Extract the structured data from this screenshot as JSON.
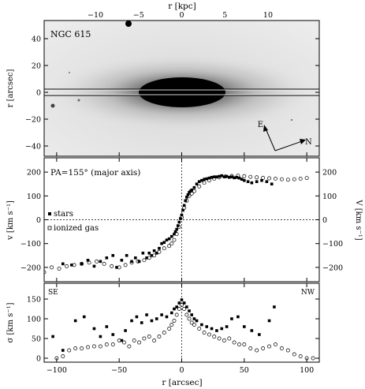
{
  "figure": {
    "top_axis_label": "r [kpc]",
    "bottom_axis_label": "r [arcsec]",
    "top_ticks": [
      "−10",
      "−5",
      "0",
      "5",
      "10"
    ],
    "bottom_ticks": [
      "−100",
      "−50",
      "0",
      "50",
      "100"
    ]
  },
  "image_panel": {
    "galaxy_name": "NGC 615",
    "ylabel": "r [arcsec]",
    "yticks": [
      "40",
      "20",
      "0",
      "−20",
      "−40"
    ],
    "compass_east": "E",
    "compass_north": "N"
  },
  "chart_data": [
    {
      "type": "scatter",
      "panel": "velocity",
      "annotation": "PA=155° (major axis)",
      "ylabel_left": "v [km s⁻¹]",
      "ylabel_right": "V [km s⁻¹]",
      "left_ticks": [
        "200",
        "100",
        "0",
        "−100",
        "−200"
      ],
      "right_ticks": [
        "200",
        "100",
        "0",
        "−100",
        "−200"
      ],
      "ylim": [
        -260,
        260
      ],
      "xlim": [
        -110,
        110
      ],
      "legend": [
        "stars",
        "ionized gas"
      ],
      "series": [
        {
          "name": "stars",
          "marker": "filled",
          "x": [
            -95,
            -88,
            -80,
            -75,
            -70,
            -65,
            -60,
            -55,
            -52,
            -48,
            -44,
            -40,
            -37,
            -34,
            -31,
            -28,
            -26,
            -24,
            -22,
            -20,
            -18,
            -16,
            -14,
            -12,
            -10,
            -8,
            -6,
            -5,
            -4,
            -3,
            -2,
            -1,
            0,
            1,
            2,
            3,
            4,
            5,
            6,
            7,
            8,
            10,
            12,
            14,
            16,
            18,
            20,
            22,
            24,
            26,
            28,
            30,
            32,
            34,
            36,
            38,
            40,
            42,
            44,
            46,
            48,
            50,
            53,
            56,
            60,
            64,
            68,
            72
          ],
          "y": [
            -185,
            -190,
            -185,
            -170,
            -195,
            -175,
            -160,
            -150,
            -200,
            -170,
            -150,
            -175,
            -160,
            -175,
            -140,
            -160,
            -140,
            -150,
            -130,
            -140,
            -120,
            -100,
            -95,
            -85,
            -80,
            -70,
            -60,
            -50,
            -40,
            -25,
            -10,
            5,
            20,
            40,
            60,
            80,
            95,
            105,
            115,
            120,
            125,
            135,
            150,
            160,
            165,
            170,
            172,
            175,
            178,
            180,
            180,
            182,
            185,
            180,
            182,
            178,
            180,
            176,
            178,
            175,
            170,
            165,
            160,
            155,
            160,
            165,
            160,
            150
          ]
        },
        {
          "name": "ionized gas",
          "marker": "open",
          "x": [
            -110,
            -104,
            -98,
            -92,
            -86,
            -80,
            -74,
            -68,
            -62,
            -56,
            -50,
            -45,
            -40,
            -35,
            -30,
            -26,
            -22,
            -18,
            -14,
            -10,
            -8,
            -6,
            -4,
            -2,
            0,
            2,
            4,
            6,
            8,
            10,
            14,
            18,
            22,
            26,
            30,
            35,
            40,
            45,
            50,
            55,
            60,
            65,
            70,
            75,
            80,
            85,
            90,
            95,
            100
          ],
          "y": [
            -220,
            -200,
            -205,
            -195,
            -190,
            -185,
            -180,
            -175,
            -185,
            -195,
            -200,
            -190,
            -180,
            -175,
            -170,
            -160,
            -150,
            -135,
            -120,
            -110,
            -100,
            -85,
            -60,
            -30,
            10,
            50,
            80,
            100,
            110,
            120,
            140,
            155,
            165,
            172,
            178,
            182,
            184,
            185,
            183,
            180,
            178,
            176,
            174,
            172,
            170,
            168,
            170,
            172,
            175
          ]
        }
      ]
    },
    {
      "type": "scatter",
      "panel": "dispersion",
      "ylabel": "σ [km s⁻¹]",
      "yticks": [
        "150",
        "100",
        "50",
        "0"
      ],
      "ylim": [
        -10,
        190
      ],
      "xlim": [
        -110,
        110
      ],
      "corner_left": "SE",
      "corner_right": "NW",
      "series": [
        {
          "name": "stars",
          "marker": "filled",
          "x": [
            -103,
            -95,
            -85,
            -78,
            -70,
            -65,
            -60,
            -55,
            -48,
            -45,
            -40,
            -36,
            -32,
            -28,
            -24,
            -20,
            -16,
            -12,
            -8,
            -6,
            -4,
            -2,
            0,
            2,
            4,
            6,
            8,
            10,
            12,
            16,
            20,
            24,
            28,
            32,
            36,
            40,
            45,
            50,
            56,
            62,
            70,
            74
          ],
          "y": [
            55,
            20,
            95,
            105,
            75,
            55,
            80,
            60,
            45,
            70,
            95,
            105,
            90,
            110,
            95,
            100,
            110,
            105,
            115,
            125,
            130,
            140,
            148,
            140,
            130,
            120,
            110,
            100,
            95,
            85,
            80,
            75,
            70,
            75,
            80,
            100,
            105,
            80,
            70,
            60,
            95,
            130
          ]
        },
        {
          "name": "ionized gas",
          "marker": "open",
          "x": [
            -100,
            -95,
            -90,
            -85,
            -80,
            -75,
            -70,
            -65,
            -60,
            -55,
            -50,
            -46,
            -42,
            -38,
            -34,
            -30,
            -26,
            -22,
            -18,
            -14,
            -10,
            -8,
            -6,
            -4,
            -2,
            0,
            2,
            4,
            6,
            8,
            10,
            14,
            18,
            22,
            26,
            30,
            34,
            38,
            42,
            46,
            50,
            55,
            60,
            65,
            70,
            75,
            80,
            85,
            90,
            95,
            100,
            105
          ],
          "y": [
            0,
            5,
            20,
            25,
            25,
            28,
            30,
            30,
            35,
            35,
            45,
            40,
            30,
            45,
            40,
            50,
            55,
            45,
            55,
            65,
            75,
            85,
            95,
            110,
            125,
            135,
            125,
            110,
            100,
            90,
            85,
            75,
            65,
            60,
            55,
            50,
            45,
            50,
            40,
            35,
            35,
            25,
            20,
            25,
            30,
            35,
            25,
            20,
            10,
            5,
            0,
            0
          ]
        }
      ]
    }
  ]
}
